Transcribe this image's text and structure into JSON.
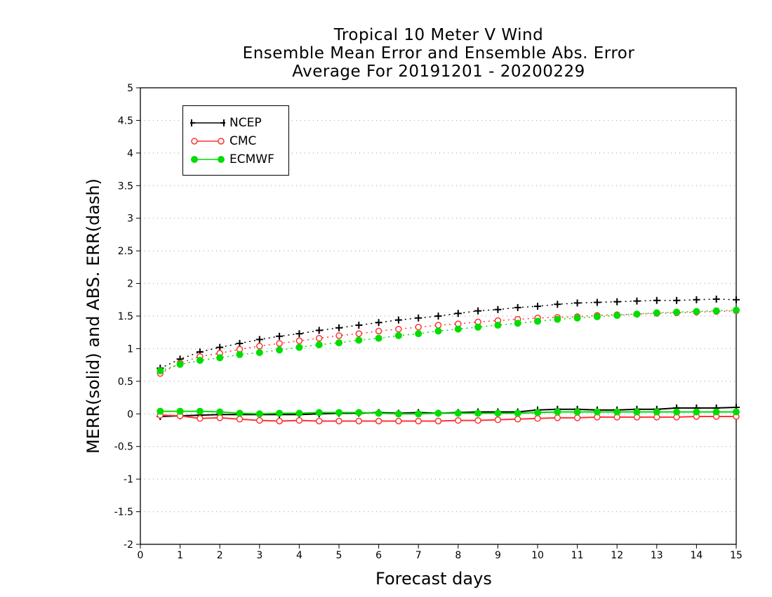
{
  "chart_data": {
    "type": "line",
    "title": [
      "Tropical 10 Meter V Wind",
      "Ensemble Mean Error and Ensemble Abs. Error",
      "Average For 20191201 - 20200229"
    ],
    "xlabel": "Forecast days",
    "ylabel": "MERR(solid) and ABS. ERR(dash)",
    "xlim": [
      0,
      15
    ],
    "ylim": [
      -2,
      5
    ],
    "xticks": [
      "0",
      "1",
      "2",
      "3",
      "4",
      "5",
      "6",
      "7",
      "8",
      "9",
      "10",
      "11",
      "12",
      "13",
      "14",
      "15"
    ],
    "yticks": [
      "5",
      "4.5",
      "4",
      "3.5",
      "3",
      "2.5",
      "2",
      "1.5",
      "1",
      "0.5",
      "0",
      "-0.5",
      "-1",
      "-1.5",
      "-2"
    ],
    "grid": "horizontal dotted",
    "legend_position": "top-left",
    "x": [
      0.5,
      1,
      1.5,
      2,
      2.5,
      3,
      3.5,
      4,
      4.5,
      5,
      5.5,
      6,
      6.5,
      7,
      7.5,
      8,
      8.5,
      9,
      9.5,
      10,
      10.5,
      11,
      11.5,
      12,
      12.5,
      13,
      13.5,
      14,
      14.5,
      15
    ],
    "series": [
      {
        "name": "NCEP",
        "color": "#000000",
        "marker": "plus",
        "merr": [
          -0.04,
          -0.03,
          -0.02,
          -0.01,
          -0.01,
          -0.01,
          -0.01,
          -0.01,
          0.0,
          0.01,
          0.01,
          0.02,
          0.01,
          0.02,
          0.01,
          0.02,
          0.03,
          0.03,
          0.03,
          0.06,
          0.07,
          0.07,
          0.06,
          0.06,
          0.07,
          0.07,
          0.09,
          0.09,
          0.09,
          0.1
        ],
        "abserr": [
          0.7,
          0.84,
          0.95,
          1.02,
          1.08,
          1.14,
          1.19,
          1.23,
          1.28,
          1.32,
          1.36,
          1.4,
          1.44,
          1.47,
          1.5,
          1.54,
          1.58,
          1.6,
          1.63,
          1.65,
          1.68,
          1.7,
          1.71,
          1.72,
          1.73,
          1.74,
          1.74,
          1.75,
          1.76,
          1.75
        ]
      },
      {
        "name": "CMC",
        "color": "#ff3333",
        "marker": "open-circle",
        "merr": [
          -0.02,
          -0.03,
          -0.07,
          -0.06,
          -0.08,
          -0.1,
          -0.11,
          -0.1,
          -0.11,
          -0.11,
          -0.11,
          -0.11,
          -0.11,
          -0.11,
          -0.11,
          -0.1,
          -0.1,
          -0.09,
          -0.08,
          -0.07,
          -0.06,
          -0.06,
          -0.05,
          -0.05,
          -0.05,
          -0.05,
          -0.05,
          -0.04,
          -0.04,
          -0.04
        ],
        "abserr": [
          0.62,
          0.78,
          0.88,
          0.93,
          0.99,
          1.04,
          1.08,
          1.12,
          1.16,
          1.2,
          1.23,
          1.27,
          1.3,
          1.33,
          1.36,
          1.38,
          1.41,
          1.43,
          1.45,
          1.47,
          1.48,
          1.49,
          1.51,
          1.52,
          1.53,
          1.54,
          1.55,
          1.56,
          1.57,
          1.58
        ]
      },
      {
        "name": "ECMWF",
        "color": "#00dd00",
        "marker": "filled-circle",
        "merr": [
          0.04,
          0.04,
          0.04,
          0.03,
          0.01,
          0.0,
          0.01,
          0.01,
          0.02,
          0.02,
          0.02,
          0.01,
          0.0,
          0.0,
          0.01,
          0.01,
          0.01,
          0.01,
          0.01,
          0.02,
          0.03,
          0.03,
          0.03,
          0.03,
          0.03,
          0.03,
          0.03,
          0.03,
          0.03,
          0.03
        ],
        "abserr": [
          0.66,
          0.76,
          0.82,
          0.86,
          0.91,
          0.94,
          0.98,
          1.02,
          1.06,
          1.09,
          1.13,
          1.16,
          1.2,
          1.23,
          1.27,
          1.3,
          1.33,
          1.36,
          1.39,
          1.42,
          1.45,
          1.47,
          1.49,
          1.51,
          1.53,
          1.55,
          1.56,
          1.57,
          1.58,
          1.59
        ]
      }
    ]
  }
}
